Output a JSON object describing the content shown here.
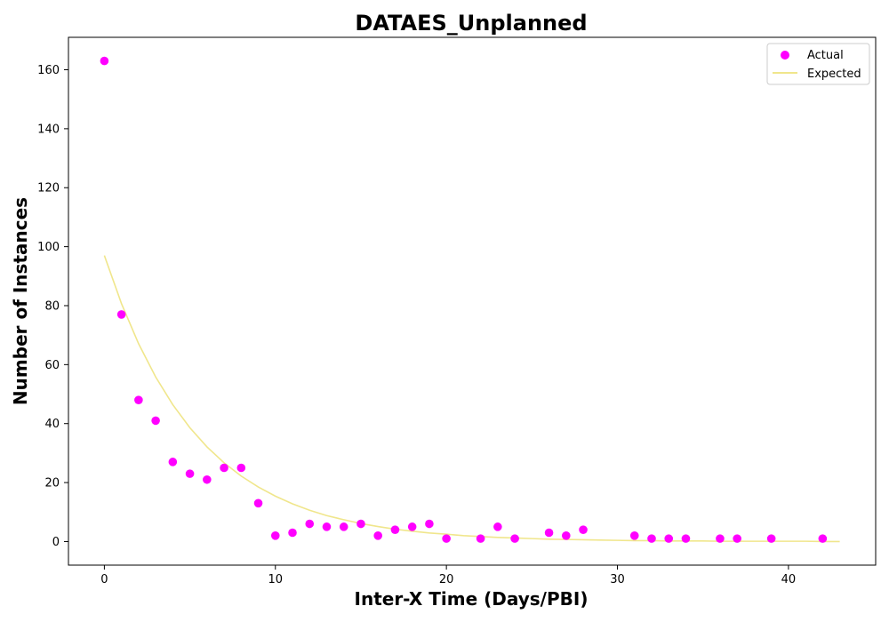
{
  "chart_data": {
    "type": "scatter",
    "title": "DATAES_Unplanned",
    "xlabel": "Inter-X Time (Days/PBI)",
    "ylabel": "Number of Instances",
    "xlim": [
      -2.1,
      45.1
    ],
    "ylim": [
      -8,
      171
    ],
    "xticks": [
      0,
      10,
      20,
      30,
      40
    ],
    "yticks": [
      0,
      20,
      40,
      60,
      80,
      100,
      120,
      140,
      160
    ],
    "grid": false,
    "legend": "top-right",
    "series": [
      {
        "name": "Actual",
        "kind": "scatter",
        "color": "#ff00ff",
        "x": [
          0,
          1,
          2,
          3,
          4,
          5,
          6,
          7,
          8,
          9,
          10,
          11,
          12,
          13,
          14,
          15,
          16,
          17,
          18,
          19,
          20,
          22,
          23,
          24,
          26,
          27,
          28,
          31,
          32,
          33,
          34,
          36,
          37,
          39,
          42
        ],
        "y": [
          163,
          77,
          48,
          41,
          27,
          23,
          21,
          25,
          25,
          13,
          2,
          3,
          6,
          5,
          5,
          6,
          2,
          4,
          5,
          6,
          1,
          1,
          5,
          1,
          3,
          2,
          4,
          2,
          1,
          1,
          1,
          1,
          1,
          1,
          1
        ]
      },
      {
        "name": "Expected",
        "kind": "line",
        "color": "#f0e68c",
        "x": [
          0,
          1,
          2,
          3,
          4,
          5,
          6,
          7,
          8,
          9,
          10,
          11,
          12,
          13,
          14,
          15,
          16,
          17,
          18,
          19,
          20,
          21,
          22,
          23,
          24,
          25,
          26,
          27,
          28,
          29,
          30,
          31,
          32,
          33,
          34,
          35,
          36,
          37,
          38,
          39,
          40,
          41,
          42,
          43
        ],
        "y": [
          97.0,
          80.7,
          67.1,
          55.8,
          46.4,
          38.6,
          32.1,
          26.7,
          22.2,
          18.5,
          15.4,
          12.8,
          10.6,
          8.8,
          7.4,
          6.1,
          5.1,
          4.2,
          3.5,
          2.9,
          2.5,
          2.0,
          1.7,
          1.4,
          1.2,
          1.0,
          0.8,
          0.7,
          0.6,
          0.5,
          0.4,
          0.3,
          0.3,
          0.2,
          0.2,
          0.2,
          0.1,
          0.1,
          0.1,
          0.1,
          0.1,
          0.1,
          0.0,
          0.0
        ]
      }
    ]
  }
}
